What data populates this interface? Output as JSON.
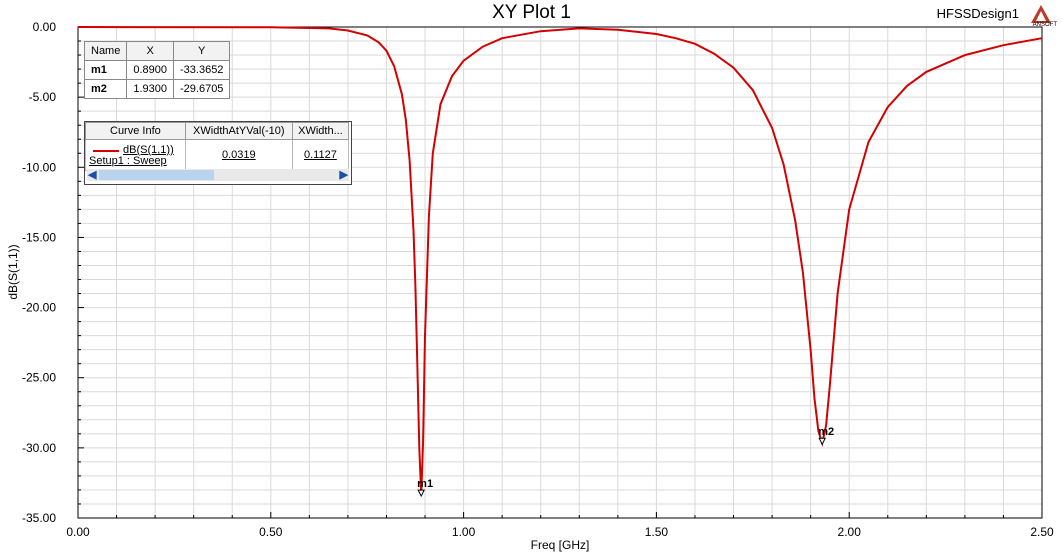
{
  "header": {
    "title": "XY Plot 1",
    "design": "HFSSDesign1",
    "logo_text": "ANSOFT"
  },
  "colors": {
    "curve": "#d40000",
    "grid": "#d9d9d9",
    "axis": "#000000"
  },
  "markers_table": {
    "columns": [
      "Name",
      "X",
      "Y"
    ],
    "rows": [
      {
        "name": "m1",
        "x": "0.8900",
        "y": "-33.3652"
      },
      {
        "name": "m2",
        "x": "1.9300",
        "y": "-29.6705"
      }
    ]
  },
  "curve_info": {
    "columns": [
      "Curve Info",
      "XWidthAtYVal(-10)",
      "XWidth..."
    ],
    "curve_name": "dB(S(1,1))",
    "curve_setup": "Setup1 : Sweep",
    "xwidth1": "0.0319",
    "xwidth2": "0.1127"
  },
  "chart_data": {
    "type": "line",
    "title": "XY Plot 1",
    "xlabel": "Freq [GHz]",
    "ylabel": "dB(S(1,1))",
    "xlim": [
      0,
      2.5
    ],
    "ylim": [
      -35,
      0
    ],
    "x_ticks": [
      "0.00",
      "0.50",
      "1.00",
      "1.50",
      "2.00",
      "2.50"
    ],
    "y_ticks": [
      "0.00",
      "-5.00",
      "-10.00",
      "-15.00",
      "-20.00",
      "-25.00",
      "-30.00",
      "-35.00"
    ],
    "grid": true,
    "series": [
      {
        "name": "dB(S(1,1))",
        "x": [
          0.0,
          0.5,
          0.65,
          0.7,
          0.75,
          0.78,
          0.8,
          0.82,
          0.84,
          0.85,
          0.86,
          0.87,
          0.875,
          0.88,
          0.885,
          0.89,
          0.895,
          0.9,
          0.91,
          0.92,
          0.94,
          0.97,
          1.0,
          1.05,
          1.1,
          1.2,
          1.3,
          1.4,
          1.5,
          1.55,
          1.6,
          1.65,
          1.7,
          1.75,
          1.8,
          1.83,
          1.86,
          1.88,
          1.9,
          1.91,
          1.92,
          1.93,
          1.94,
          1.95,
          1.97,
          2.0,
          2.05,
          2.1,
          2.15,
          2.2,
          2.3,
          2.4,
          2.5
        ],
        "y": [
          0.0,
          -0.02,
          -0.1,
          -0.25,
          -0.6,
          -1.1,
          -1.7,
          -2.8,
          -4.8,
          -6.6,
          -9.5,
          -14.5,
          -18.5,
          -24.0,
          -30.0,
          -33.37,
          -29.5,
          -22.0,
          -13.5,
          -9.0,
          -5.5,
          -3.5,
          -2.4,
          -1.4,
          -0.8,
          -0.3,
          -0.1,
          -0.2,
          -0.5,
          -0.8,
          -1.2,
          -1.9,
          -2.9,
          -4.5,
          -7.2,
          -9.8,
          -13.8,
          -17.5,
          -23.0,
          -26.5,
          -28.8,
          -29.67,
          -28.4,
          -25.5,
          -19.0,
          -13.0,
          -8.2,
          -5.7,
          -4.2,
          -3.2,
          -2.0,
          -1.3,
          -0.8
        ]
      }
    ],
    "markers": [
      {
        "label": "m1",
        "x": 0.89,
        "y": -33.3652
      },
      {
        "label": "m2",
        "x": 1.93,
        "y": -29.6705
      }
    ]
  }
}
